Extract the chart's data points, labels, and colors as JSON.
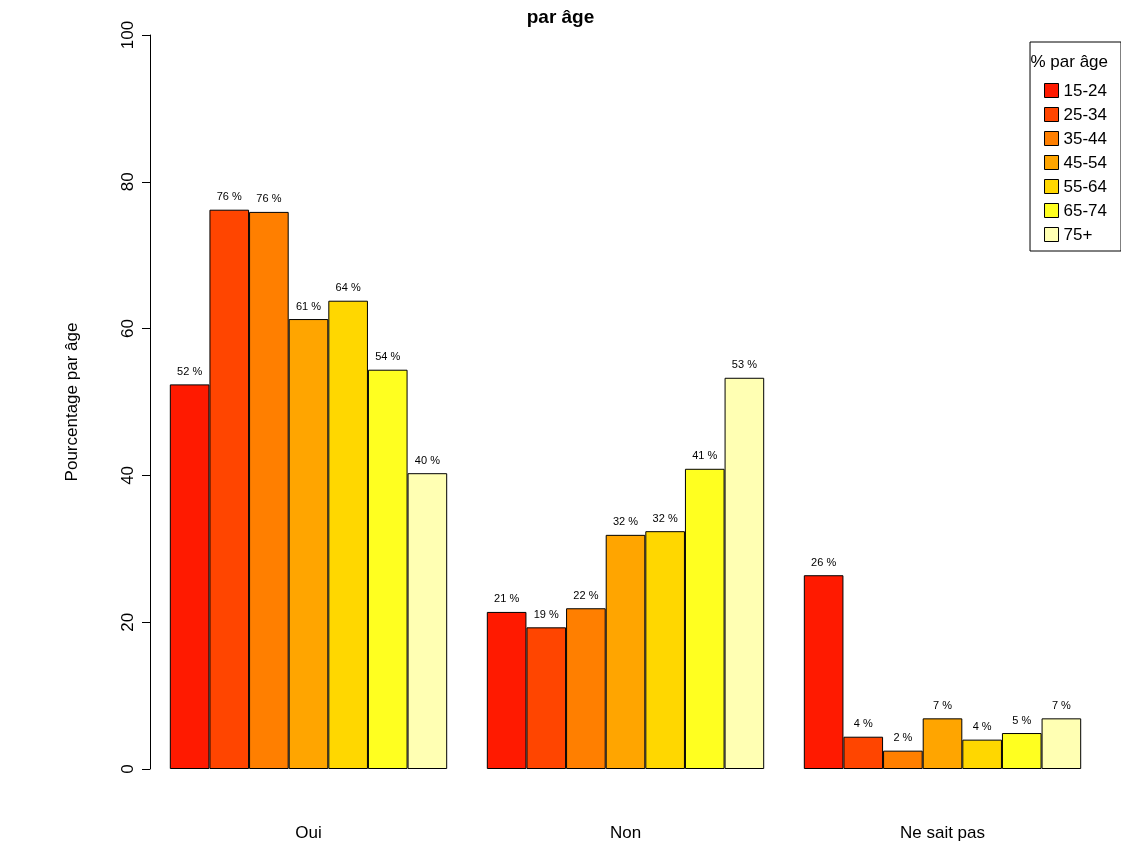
{
  "chart_data": {
    "type": "bar",
    "title": "par âge",
    "ylabel": "Pourcentage par âge",
    "legend_title": "% par âge",
    "categories": [
      "Oui",
      "Non",
      "Ne sait pas"
    ],
    "series": [
      {
        "name": "15-24",
        "color": "#ff1a00",
        "values": [
          52.4,
          21.4,
          26.4
        ],
        "value_labels": [
          "52 %",
          "21 %",
          "26 %"
        ]
      },
      {
        "name": "25-34",
        "color": "#ff4500",
        "values": [
          76.2,
          19.3,
          4.4
        ],
        "value_labels": [
          "76 %",
          "19 %",
          "4 %"
        ]
      },
      {
        "name": "35-44",
        "color": "#ff7f00",
        "values": [
          75.9,
          21.9,
          2.5
        ],
        "value_labels": [
          "76 %",
          "22 %",
          "2 %"
        ]
      },
      {
        "name": "45-54",
        "color": "#ffa500",
        "values": [
          61.3,
          31.9,
          6.9
        ],
        "value_labels": [
          "61 %",
          "32 %",
          "7 %"
        ]
      },
      {
        "name": "55-64",
        "color": "#ffd700",
        "values": [
          63.8,
          32.4,
          4.0
        ],
        "value_labels": [
          "64 %",
          "32 %",
          "4 %"
        ]
      },
      {
        "name": "65-74",
        "color": "#ffff20",
        "values": [
          54.4,
          40.9,
          4.9
        ],
        "value_labels": [
          "54 %",
          "41 %",
          "5 %"
        ]
      },
      {
        "name": "75+",
        "color": "#ffffb3",
        "values": [
          40.3,
          53.3,
          6.9
        ],
        "value_labels": [
          "40 %",
          "53 %",
          "7 %"
        ]
      }
    ],
    "ylim": [
      0,
      100
    ],
    "yticks": [
      0,
      20,
      40,
      60,
      80,
      100
    ],
    "grid": false,
    "legend": "top right"
  }
}
